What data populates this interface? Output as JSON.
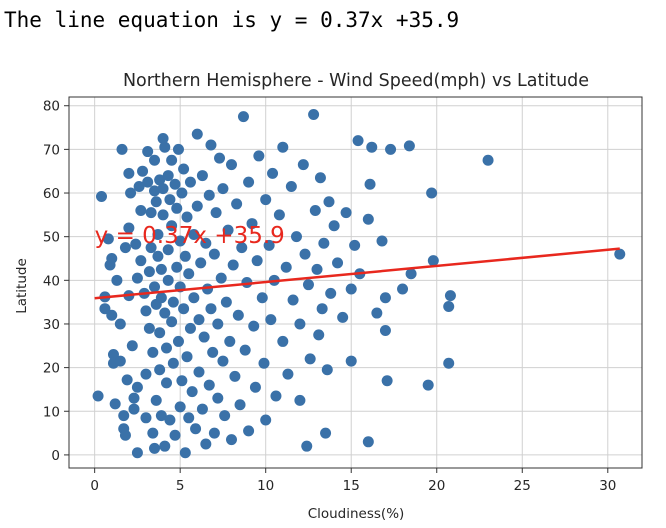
{
  "output_text": "The line equation is y = 0.37x +35.9",
  "chart_data": {
    "type": "scatter",
    "title": "Northern Hemisphere - Wind Speed(mph) vs Latitude",
    "xlabel": "Cloudiness(%)",
    "ylabel": "Latitude",
    "xlim": [
      -1.5,
      32
    ],
    "ylim": [
      -3,
      82
    ],
    "xticks": [
      0,
      5,
      10,
      15,
      20,
      25,
      30
    ],
    "yticks": [
      0,
      10,
      20,
      30,
      40,
      50,
      60,
      70,
      80
    ],
    "grid": true,
    "point_color": "#3a71a8",
    "line_color": "#e8281e",
    "annotation": "y = 0.37x +35.9",
    "annotation_pos": [
      0,
      48.5
    ],
    "regression": {
      "slope": 0.37,
      "intercept": 35.9,
      "x_range": [
        0,
        30.7
      ]
    },
    "points": [
      [
        0.2,
        13.5
      ],
      [
        0.4,
        59.2
      ],
      [
        0.6,
        36.2
      ],
      [
        0.6,
        33.5
      ],
      [
        0.8,
        49.5
      ],
      [
        0.9,
        43.5
      ],
      [
        1.0,
        45.0
      ],
      [
        1.0,
        32.0
      ],
      [
        1.1,
        23.0
      ],
      [
        1.1,
        21.0
      ],
      [
        1.2,
        11.7
      ],
      [
        1.3,
        40.0
      ],
      [
        1.5,
        21.5
      ],
      [
        1.5,
        30.0
      ],
      [
        1.6,
        70.0
      ],
      [
        1.7,
        9.0
      ],
      [
        1.7,
        6.0
      ],
      [
        1.8,
        4.5
      ],
      [
        1.8,
        47.5
      ],
      [
        1.9,
        17.2
      ],
      [
        2.0,
        36.5
      ],
      [
        2.0,
        52.0
      ],
      [
        2.0,
        64.5
      ],
      [
        2.1,
        60.0
      ],
      [
        2.2,
        25.0
      ],
      [
        2.3,
        13.0
      ],
      [
        2.3,
        10.5
      ],
      [
        2.4,
        48.3
      ],
      [
        2.5,
        0.5
      ],
      [
        2.5,
        15.5
      ],
      [
        2.5,
        40.5
      ],
      [
        2.6,
        61.5
      ],
      [
        2.7,
        44.5
      ],
      [
        2.7,
        56.0
      ],
      [
        2.8,
        65.0
      ],
      [
        2.9,
        37.0
      ],
      [
        3.0,
        33.0
      ],
      [
        3.0,
        18.5
      ],
      [
        3.0,
        8.5
      ],
      [
        3.1,
        62.5
      ],
      [
        3.1,
        69.5
      ],
      [
        3.2,
        42.0
      ],
      [
        3.2,
        29.0
      ],
      [
        3.3,
        47.5
      ],
      [
        3.3,
        55.5
      ],
      [
        3.4,
        23.5
      ],
      [
        3.4,
        5.0
      ],
      [
        3.5,
        1.5
      ],
      [
        3.5,
        38.5
      ],
      [
        3.5,
        60.5
      ],
      [
        3.5,
        67.5
      ],
      [
        3.6,
        12.5
      ],
      [
        3.6,
        34.5
      ],
      [
        3.6,
        58.0
      ],
      [
        3.7,
        45.5
      ],
      [
        3.7,
        50.5
      ],
      [
        3.8,
        63.0
      ],
      [
        3.8,
        28.0
      ],
      [
        3.8,
        19.5
      ],
      [
        3.9,
        9.0
      ],
      [
        3.9,
        42.5
      ],
      [
        3.9,
        36.0
      ],
      [
        4.0,
        72.5
      ],
      [
        4.0,
        55.0
      ],
      [
        4.0,
        61.0
      ],
      [
        4.1,
        32.5
      ],
      [
        4.1,
        2.0
      ],
      [
        4.1,
        70.5
      ],
      [
        4.2,
        24.5
      ],
      [
        4.2,
        16.5
      ],
      [
        4.3,
        47.0
      ],
      [
        4.3,
        64.0
      ],
      [
        4.3,
        40.0
      ],
      [
        4.4,
        8.0
      ],
      [
        4.4,
        58.5
      ],
      [
        4.5,
        30.5
      ],
      [
        4.5,
        52.5
      ],
      [
        4.5,
        67.5
      ],
      [
        4.6,
        35.0
      ],
      [
        4.6,
        21.0
      ],
      [
        4.7,
        4.5
      ],
      [
        4.7,
        62.0
      ],
      [
        4.8,
        43.0
      ],
      [
        4.8,
        56.5
      ],
      [
        4.9,
        26.0
      ],
      [
        4.9,
        70.0
      ],
      [
        5.0,
        11.0
      ],
      [
        5.0,
        38.5
      ],
      [
        5.0,
        49.0
      ],
      [
        5.1,
        60.0
      ],
      [
        5.1,
        17.0
      ],
      [
        5.2,
        33.5
      ],
      [
        5.2,
        65.5
      ],
      [
        5.3,
        0.5
      ],
      [
        5.3,
        45.5
      ],
      [
        5.4,
        22.5
      ],
      [
        5.4,
        54.5
      ],
      [
        5.5,
        8.5
      ],
      [
        5.5,
        41.5
      ],
      [
        5.6,
        29.0
      ],
      [
        5.6,
        62.5
      ],
      [
        5.7,
        14.5
      ],
      [
        5.8,
        36.0
      ],
      [
        5.8,
        50.5
      ],
      [
        5.9,
        6.0
      ],
      [
        6.0,
        57.0
      ],
      [
        6.0,
        73.5
      ],
      [
        6.1,
        31.0
      ],
      [
        6.1,
        19.0
      ],
      [
        6.2,
        44.0
      ],
      [
        6.3,
        10.5
      ],
      [
        6.3,
        64.0
      ],
      [
        6.4,
        27.0
      ],
      [
        6.5,
        48.5
      ],
      [
        6.5,
        2.5
      ],
      [
        6.6,
        38.0
      ],
      [
        6.7,
        59.5
      ],
      [
        6.7,
        16.0
      ],
      [
        6.8,
        33.5
      ],
      [
        6.8,
        71.0
      ],
      [
        6.9,
        23.5
      ],
      [
        7.0,
        46.0
      ],
      [
        7.0,
        5.0
      ],
      [
        7.1,
        55.5
      ],
      [
        7.2,
        30.0
      ],
      [
        7.2,
        13.0
      ],
      [
        7.3,
        68.0
      ],
      [
        7.4,
        40.5
      ],
      [
        7.5,
        21.5
      ],
      [
        7.5,
        61.0
      ],
      [
        7.6,
        9.0
      ],
      [
        7.7,
        35.0
      ],
      [
        7.8,
        51.5
      ],
      [
        7.9,
        26.0
      ],
      [
        8.0,
        66.5
      ],
      [
        8.0,
        3.5
      ],
      [
        8.1,
        43.5
      ],
      [
        8.2,
        18.0
      ],
      [
        8.3,
        57.5
      ],
      [
        8.4,
        32.0
      ],
      [
        8.5,
        11.5
      ],
      [
        8.6,
        47.5
      ],
      [
        8.7,
        77.5
      ],
      [
        8.8,
        24.0
      ],
      [
        8.9,
        39.5
      ],
      [
        9.0,
        62.5
      ],
      [
        9.0,
        5.5
      ],
      [
        9.2,
        53.0
      ],
      [
        9.3,
        29.5
      ],
      [
        9.4,
        15.5
      ],
      [
        9.5,
        44.5
      ],
      [
        9.6,
        68.5
      ],
      [
        9.8,
        36.0
      ],
      [
        9.9,
        21.0
      ],
      [
        10.0,
        58.5
      ],
      [
        10.0,
        8.0
      ],
      [
        10.2,
        48.0
      ],
      [
        10.3,
        31.0
      ],
      [
        10.4,
        64.5
      ],
      [
        10.5,
        40.0
      ],
      [
        10.6,
        13.5
      ],
      [
        10.8,
        55.0
      ],
      [
        11.0,
        26.0
      ],
      [
        11.0,
        70.5
      ],
      [
        11.2,
        43.0
      ],
      [
        11.3,
        18.5
      ],
      [
        11.5,
        61.5
      ],
      [
        11.6,
        35.5
      ],
      [
        11.8,
        50.0
      ],
      [
        12.0,
        30.0
      ],
      [
        12.0,
        12.5
      ],
      [
        12.2,
        66.5
      ],
      [
        12.3,
        46.0
      ],
      [
        12.4,
        2.0
      ],
      [
        12.5,
        39.0
      ],
      [
        12.6,
        22.0
      ],
      [
        12.8,
        78.0
      ],
      [
        12.9,
        56.0
      ],
      [
        13.0,
        42.5
      ],
      [
        13.1,
        27.5
      ],
      [
        13.2,
        63.5
      ],
      [
        13.3,
        33.5
      ],
      [
        13.4,
        48.5
      ],
      [
        13.5,
        5.0
      ],
      [
        13.6,
        19.5
      ],
      [
        13.7,
        58.0
      ],
      [
        13.8,
        37.0
      ],
      [
        14.0,
        52.5
      ],
      [
        14.2,
        44.0
      ],
      [
        14.5,
        31.5
      ],
      [
        14.7,
        55.5
      ],
      [
        15.0,
        21.5
      ],
      [
        15.0,
        38.0
      ],
      [
        15.2,
        48.0
      ],
      [
        15.4,
        72.0
      ],
      [
        15.5,
        41.5
      ],
      [
        16.0,
        3.0
      ],
      [
        16.0,
        54.0
      ],
      [
        16.1,
        62.0
      ],
      [
        16.2,
        70.5
      ],
      [
        16.5,
        32.5
      ],
      [
        16.8,
        49.0
      ],
      [
        17.0,
        28.5
      ],
      [
        17.0,
        36.0
      ],
      [
        17.1,
        17.0
      ],
      [
        17.3,
        70.0
      ],
      [
        18.0,
        38.0
      ],
      [
        18.4,
        70.8
      ],
      [
        18.5,
        41.5
      ],
      [
        19.5,
        16.0
      ],
      [
        19.7,
        60.0
      ],
      [
        19.8,
        44.5
      ],
      [
        20.7,
        21.0
      ],
      [
        20.7,
        34.0
      ],
      [
        20.8,
        36.5
      ],
      [
        23.0,
        67.5
      ],
      [
        30.7,
        46.0
      ]
    ]
  }
}
